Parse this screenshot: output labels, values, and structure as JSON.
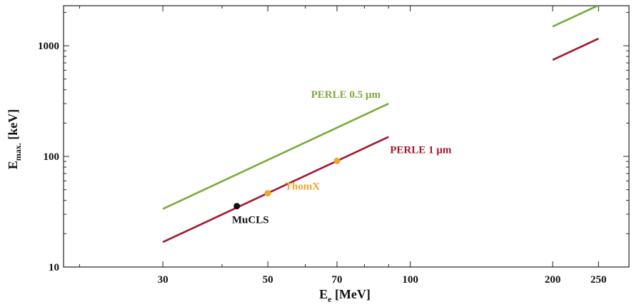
{
  "chart_data": {
    "type": "line",
    "xscale": "log",
    "yscale": "log",
    "xlim": [
      18.5,
      290
    ],
    "ylim": [
      10,
      2300
    ],
    "grid": false,
    "xlabel": {
      "main": "E",
      "sub": "e",
      "unit": " [MeV]"
    },
    "ylabel": {
      "main": "E",
      "sub": "max.",
      "unit": " [keV]"
    },
    "x_ticks": [
      30,
      50,
      70,
      100,
      200,
      250
    ],
    "x_tick_labels": [
      "30",
      "50",
      "70",
      "100",
      "200",
      "250"
    ],
    "y_ticks": [
      10,
      100,
      1000
    ],
    "y_tick_labels": [
      "10",
      "100",
      "1000"
    ],
    "series": [
      {
        "name": "PERLE 0.5 µm",
        "color": "#7aab3a",
        "segments": [
          [
            [
              30,
              33.5
            ],
            [
              90,
              300
            ]
          ],
          [
            [
              200,
              1490
            ],
            [
              250,
              2320
            ]
          ]
        ]
      },
      {
        "name": "PERLE 1 µm",
        "color": "#a3172e",
        "segments": [
          [
            [
              30,
              16.8
            ],
            [
              90,
              150
            ]
          ],
          [
            [
              200,
              745
            ],
            [
              250,
              1160
            ]
          ]
        ]
      }
    ],
    "points": [
      {
        "name": "MuCLS",
        "x": 43,
        "y": 35.5,
        "color": "#111111",
        "label_color": "#111111"
      },
      {
        "name": "ThomX",
        "x": 50,
        "y": 46.5,
        "color": "#f0a530",
        "label_color": "#f0a530"
      },
      {
        "name": "ThomX",
        "x": 70,
        "y": 91,
        "color": "#f0a530",
        "label_color": "#f0a530"
      }
    ],
    "labels": [
      {
        "text": "PERLE 0.5 µm",
        "color": "#7aab3a",
        "anchor": "line-end-above"
      },
      {
        "text": "PERLE 1 µm",
        "color": "#a3172e",
        "anchor": "line-end-below"
      },
      {
        "text": "ThomX",
        "color": "#f0a530",
        "anchor": "points-below"
      },
      {
        "text": "MuCLS",
        "color": "#111111",
        "anchor": "point-below"
      }
    ]
  }
}
